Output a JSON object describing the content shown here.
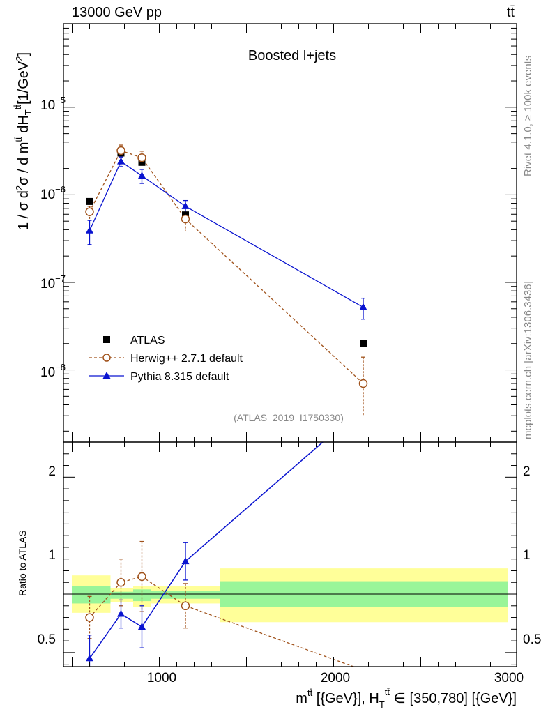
{
  "header": {
    "left": "13000 GeV pp",
    "right": "tt̄"
  },
  "main_plot": {
    "title": "Boosted l+jets",
    "ylabel": "1 / σ d²σ / d m^tt̄ dH_T^tt̄ [1/GeV²]",
    "ylabel_parts": {
      "a": "1 / σ d",
      "b": "2",
      "c": "σ / d m",
      "d": "tt̄",
      "e": " dH",
      "f": "T",
      "g": "tt̄",
      "h": "[1/GeV",
      "i": "2",
      "j": "]"
    },
    "analysis_id": "(ATLAS_2019_I1750330)",
    "yticks": [
      {
        "base": "10",
        "exp": "−5"
      },
      {
        "base": "10",
        "exp": "−6"
      },
      {
        "base": "10",
        "exp": "−7"
      },
      {
        "base": "10",
        "exp": "−8"
      }
    ]
  },
  "ratio_plot": {
    "ylabel": "Ratio to ATLAS",
    "yticks": [
      "2",
      "1",
      "0.5"
    ]
  },
  "xaxis": {
    "ticks": [
      "1000",
      "2000",
      "3000"
    ],
    "label_parts": {
      "a": "m",
      "b": "tt̄",
      "c": " [{GeV}], H",
      "d": "T",
      "e": "tt̄",
      "f": " ∈ [350,780] [{GeV}]"
    }
  },
  "side_text": {
    "rivet": "Rivet 4.1.0, ≥ 100k events",
    "mcplots": "mcplots.cern.ch [arXiv:1306.3436]"
  },
  "legend": [
    {
      "label": "ATLAS",
      "color": "#000000",
      "marker": "square"
    },
    {
      "label": "Herwig++ 2.7.1 default",
      "color": "#a0521b",
      "marker": "open-circle"
    },
    {
      "label": "Pythia 8.315 default",
      "color": "#0a14d0",
      "marker": "triangle"
    }
  ],
  "chart_data": {
    "type": "scatter",
    "title": "Boosted l+jets",
    "xlabel": "m^tt̄ [{GeV}], H_T^tt̄ ∈ [350,780] [{GeV}]",
    "ylabel": "1 / σ d²σ / d m^tt̄ dH_T^tt̄ [1/GeV²]",
    "xlim": [
      450,
      3050
    ],
    "ylim_log": [
      1.5e-09,
      9e-05
    ],
    "ratio_ylim": [
      0.38,
      2.3
    ],
    "series": [
      {
        "name": "ATLAS",
        "x": [
          600,
          780,
          900,
          1150,
          2170
        ],
        "y": [
          8.4e-07,
          3e-06,
          2.35e-06,
          5.9e-07,
          2e-08
        ]
      },
      {
        "name": "Herwig++ 2.7.1 default",
        "x": [
          600,
          780,
          900,
          1150,
          2170
        ],
        "y": [
          6.4e-07,
          3.2e-06,
          2.65e-06,
          5.3e-07,
          7e-09
        ],
        "yerr_lo": [
          1.2e-07,
          5e-07,
          5e-07,
          1.4e-07,
          4e-09
        ],
        "yerr_hi": [
          1e-07,
          5e-07,
          5e-07,
          1e-07,
          7e-09
        ],
        "ratio": [
          0.8,
          1.1,
          1.15,
          0.9,
          0.35
        ],
        "ratio_err": [
          0.18,
          0.2,
          0.3,
          0.19,
          0.2
        ]
      },
      {
        "name": "Pythia 8.315 default",
        "x": [
          600,
          780,
          900,
          1150,
          2170
        ],
        "y": [
          3.9e-07,
          2.4e-06,
          1.65e-06,
          7.4e-07,
          5.2e-08
        ],
        "yerr_lo": [
          1.2e-07,
          3e-07,
          3e-07,
          1.2e-07,
          1.4e-08
        ],
        "yerr_hi": [
          1.2e-07,
          3e-07,
          3e-07,
          1.2e-07,
          1.4e-08
        ],
        "ratio": [
          0.45,
          0.83,
          0.72,
          1.28,
          2.6
        ],
        "ratio_err": [
          0.2,
          0.12,
          0.18,
          0.16,
          0.3
        ]
      }
    ],
    "uncertainty_bands": [
      {
        "x0": 450,
        "x1": 720,
        "inner": [
          0.92,
          1.07
        ],
        "outer": [
          0.84,
          1.16
        ]
      },
      {
        "x0": 720,
        "x1": 850,
        "inner": [
          0.96,
          1.02
        ],
        "outer": [
          0.93,
          1.05
        ]
      },
      {
        "x0": 850,
        "x1": 950,
        "inner": [
          0.94,
          1.04
        ],
        "outer": [
          0.89,
          1.07
        ]
      },
      {
        "x0": 950,
        "x1": 1350,
        "inner": [
          0.96,
          1.03
        ],
        "outer": [
          0.92,
          1.07
        ]
      },
      {
        "x0": 1350,
        "x1": 3000,
        "inner": [
          0.89,
          1.11
        ],
        "outer": [
          0.76,
          1.22
        ]
      }
    ]
  }
}
